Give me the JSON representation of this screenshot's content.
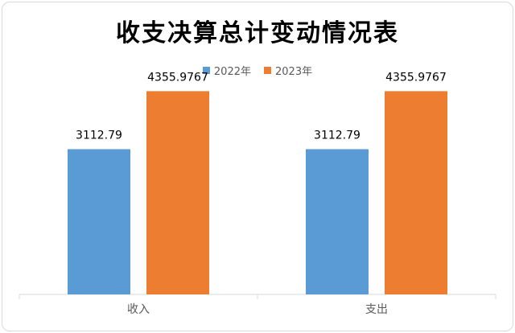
{
  "chart_data": {
    "type": "bar",
    "title": "收支决算总计变动情况表",
    "categories": [
      "收入",
      "支出"
    ],
    "series": [
      {
        "name": "2022年",
        "values": [
          3112.79,
          3112.79
        ],
        "labels": [
          "3112.79",
          "3112.79"
        ],
        "color": "#5b9bd5"
      },
      {
        "name": "2023年",
        "values": [
          4355.9767,
          4355.9767
        ],
        "labels": [
          "4355.9767",
          "4355.9767"
        ],
        "color": "#ed7d31"
      }
    ],
    "xlabel": "",
    "ylabel": "",
    "ylim": [
      0,
      5000
    ],
    "grid": false,
    "legend_position": "top"
  }
}
